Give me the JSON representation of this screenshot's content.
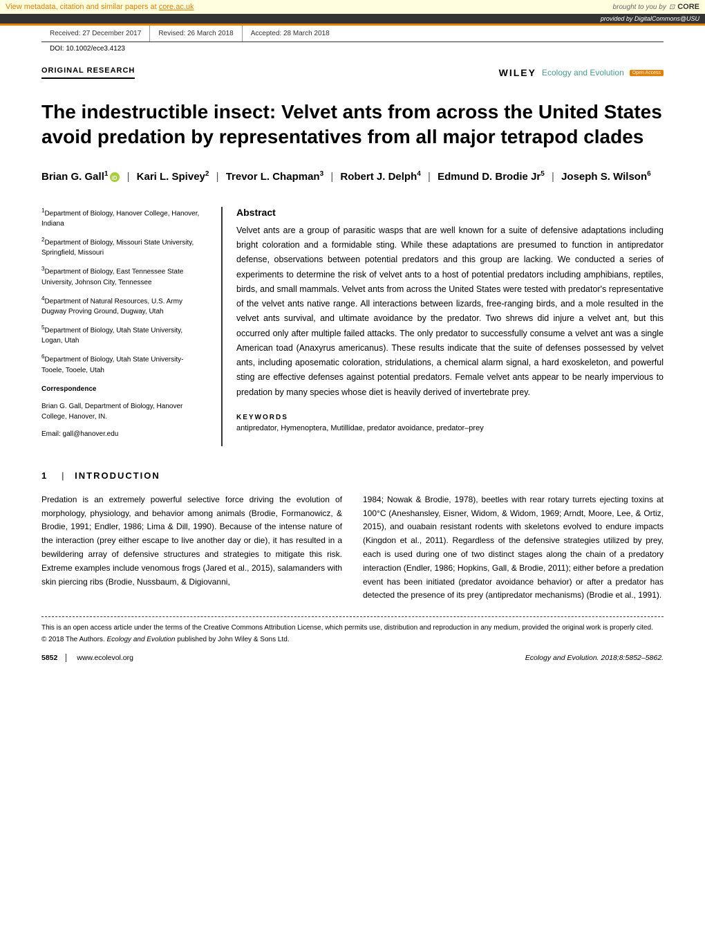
{
  "metadata_bar": {
    "text_prefix": "View metadata, citation and similar papers at ",
    "link": "core.ac.uk",
    "brought_by": "brought to you by",
    "core": "CORE"
  },
  "provided_bar": "provided by DigitalCommons@USU",
  "received": {
    "received": "Received: 27 December 2017",
    "revised": "Revised: 26 March 2018",
    "accepted": "Accepted: 28 March 2018"
  },
  "doi": "DOI: 10.1002/ece3.4123",
  "article_type": "ORIGINAL RESEARCH",
  "publisher": {
    "wiley": "WILEY",
    "journal": "Ecology and Evolution",
    "open_access": "Open Access"
  },
  "title": "The indestructible insect: Velvet ants from across the United States avoid predation by representatives from all major tetrapod clades",
  "authors": [
    {
      "name": "Brian G. Gall",
      "aff": "1",
      "orcid": true
    },
    {
      "name": "Kari L. Spivey",
      "aff": "2"
    },
    {
      "name": "Trevor L. Chapman",
      "aff": "3"
    },
    {
      "name": "Robert J. Delph",
      "aff": "4"
    },
    {
      "name": "Edmund D. Brodie Jr",
      "aff": "5"
    },
    {
      "name": "Joseph S. Wilson",
      "aff": "6"
    }
  ],
  "affiliations": [
    {
      "num": "1",
      "text": "Department of Biology, Hanover College, Hanover, Indiana"
    },
    {
      "num": "2",
      "text": "Department of Biology, Missouri State University, Springfield, Missouri"
    },
    {
      "num": "3",
      "text": "Department of Biology, East Tennessee State University, Johnson City, Tennessee"
    },
    {
      "num": "4",
      "text": "Department of Natural Resources, U.S. Army Dugway Proving Ground, Dugway, Utah"
    },
    {
      "num": "5",
      "text": "Department of Biology, Utah State University, Logan, Utah"
    },
    {
      "num": "6",
      "text": "Department of Biology, Utah State University-Tooele, Tooele, Utah"
    }
  ],
  "correspondence": {
    "hdr": "Correspondence",
    "text": "Brian G. Gall, Department of Biology, Hanover College, Hanover, IN.",
    "email": "Email: gall@hanover.edu"
  },
  "abstract": {
    "hdr": "Abstract",
    "text": "Velvet ants are a group of parasitic wasps that are well known for a suite of defensive adaptations including bright coloration and a formidable sting. While these adaptations are presumed to function in antipredator defense, observations between potential predators and this group are lacking. We conducted a series of experiments to determine the risk of velvet ants to a host of potential predators including amphibians, reptiles, birds, and small mammals. Velvet ants from across the United States were tested with predator's representative of the velvet ants native range. All interactions between lizards, free-ranging birds, and a mole resulted in the velvet ants survival, and ultimate avoidance by the predator. Two shrews did injure a velvet ant, but this occurred only after multiple failed attacks. The only predator to successfully consume a velvet ant was a single American toad (Anaxyrus americanus). These results indicate that the suite of defenses possessed by velvet ants, including aposematic coloration, stridulations, a chemical alarm signal, a hard exoskeleton, and powerful sting are effective defenses against potential predators. Female velvet ants appear to be nearly impervious to predation by many species whose diet is heavily derived of invertebrate prey."
  },
  "keywords": {
    "hdr": "KEYWORDS",
    "text": "antipredator, Hymenoptera, Mutillidae, predator avoidance, predator–prey"
  },
  "section1": {
    "num": "1",
    "title": "INTRODUCTION",
    "col1": "Predation is an extremely powerful selective force driving the evolution of morphology, physiology, and behavior among animals (Brodie, Formanowicz, & Brodie, 1991; Endler, 1986; Lima & Dill, 1990). Because of the intense nature of the interaction (prey either escape to live another day or die), it has resulted in a bewildering array of defensive structures and strategies to mitigate this risk. Extreme examples include venomous frogs (Jared et al., 2015), salamanders with skin piercing ribs (Brodie, Nussbaum, & Digiovanni,",
    "col2": "1984; Nowak & Brodie, 1978), beetles with rear rotary turrets ejecting toxins at 100°C (Aneshansley, Eisner, Widom, & Widom, 1969; Arndt, Moore, Lee, & Ortiz, 2015), and ouabain resistant rodents with skeletons evolved to endure impacts (Kingdon et al., 2011). Regardless of the defensive strategies utilized by prey, each is used during one of two distinct stages along the chain of a predatory interaction (Endler, 1986; Hopkins, Gall, & Brodie, 2011); either before a predation event has been initiated (predator avoidance behavior) or after a predator has detected the presence of its prey (antipredator mechanisms) (Brodie et al., 1991)."
  },
  "license": "This is an open access article under the terms of the Creative Commons Attribution License, which permits use, distribution and reproduction in any medium, provided the original work is properly cited.",
  "copyright": {
    "text": "© 2018 The Authors. ",
    "journal": "Ecology and Evolution",
    "suffix": " published by John Wiley & Sons Ltd."
  },
  "footer": {
    "page": "5852",
    "url": "www.ecolevol.org",
    "citation": "Ecology and Evolution. 2018;8:5852–5862."
  },
  "colors": {
    "orange": "#e67e00",
    "teal": "#4a9b8e",
    "yellow_bg": "#ffffe0",
    "orcid_green": "#a6ce39"
  }
}
